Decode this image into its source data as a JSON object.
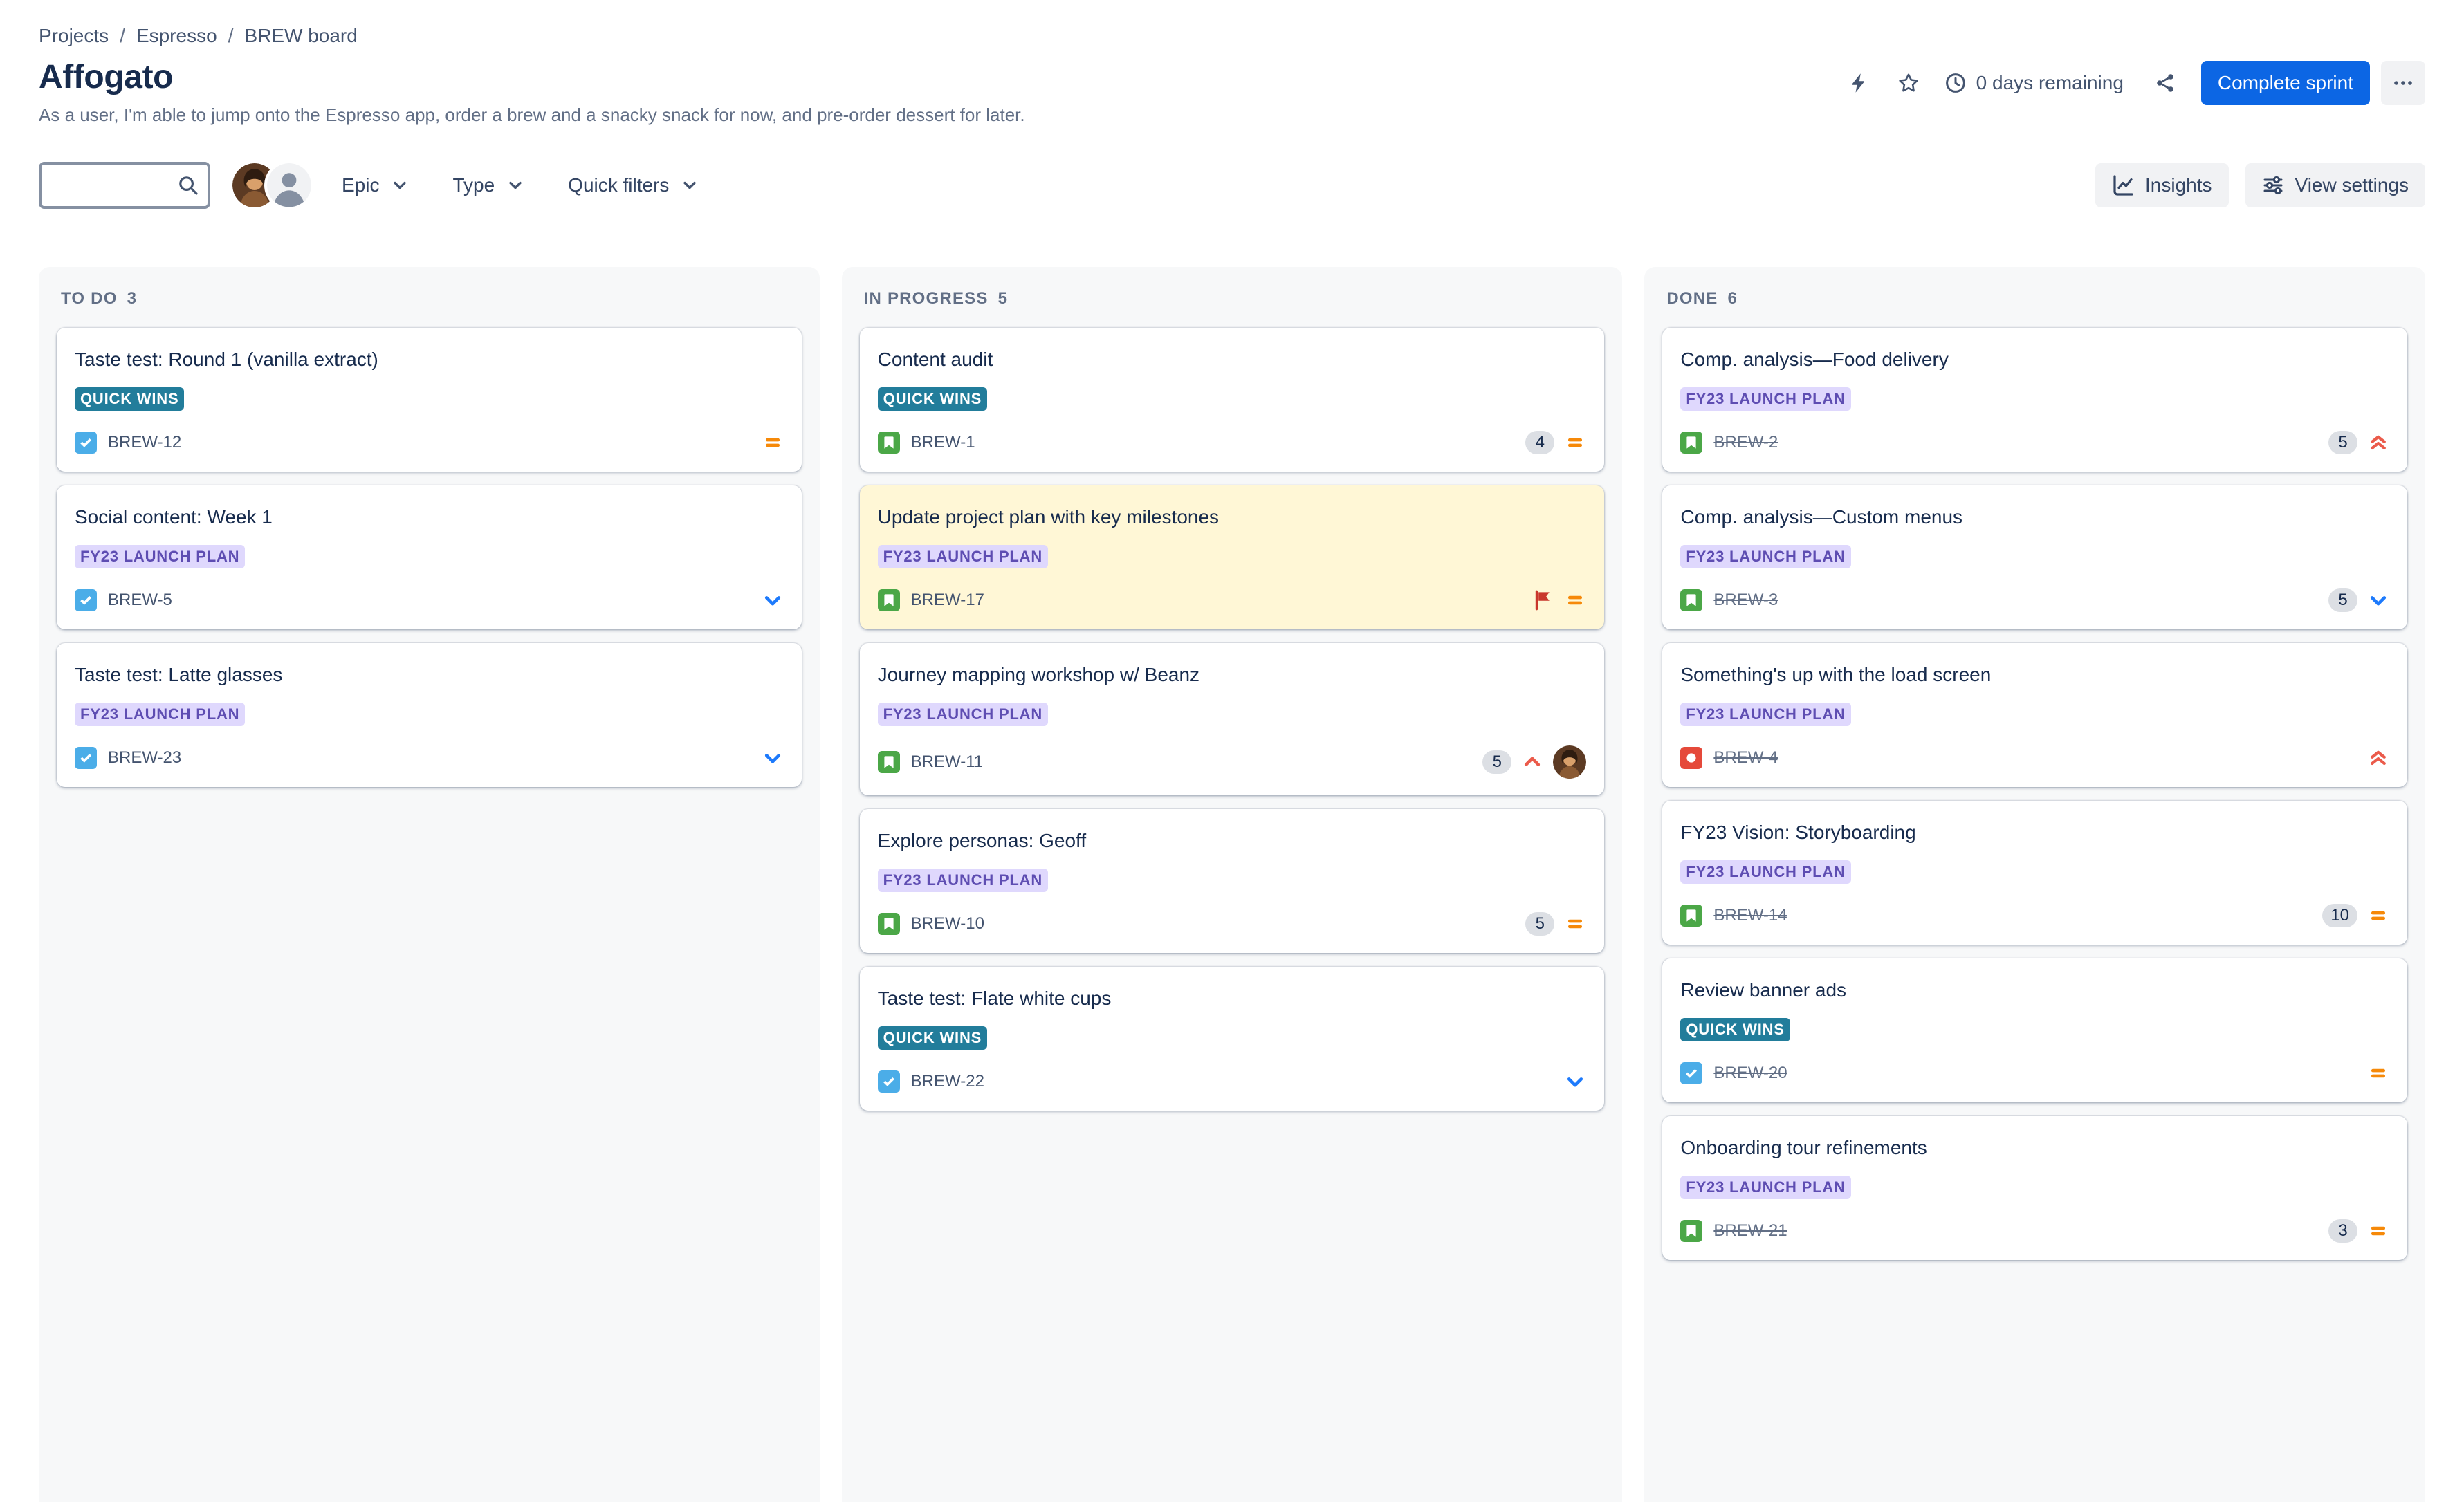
{
  "colors": {
    "primary_blue": "#0C66E4",
    "epic_teal_badge_bg": "#227D9B",
    "epic_purple_badge_bg": "#DFD8FD",
    "epic_purple_badge_text": "#5E4DB2",
    "flagged_card_bg": "#FFF7D6",
    "task_icon_blue": "#4BADE8",
    "story_icon_green": "#4BA747",
    "bug_icon_red": "#E5493A",
    "priority_medium_orange": "#F68909",
    "priority_low_blue": "#1D7AFC",
    "priority_high_red": "#EB5B4B",
    "flag_red": "#C9372C",
    "column_bg": "#F7F8F9"
  },
  "breadcrumb": {
    "items": [
      {
        "label": "Projects"
      },
      {
        "label": "Espresso"
      },
      {
        "label": "BREW board"
      }
    ]
  },
  "header": {
    "title": "Affogato",
    "subtitle": "As a user, I'm able to jump onto the Espresso app, order a brew and a snacky snack for now, and pre-order dessert for later.",
    "days_remaining": "0 days remaining",
    "complete_sprint_label": "Complete sprint",
    "icons": [
      "lightning-icon",
      "star-icon",
      "clock-icon",
      "share-icon",
      "more-icon"
    ]
  },
  "toolbar": {
    "search": {
      "value": "",
      "placeholder": ""
    },
    "avatars": [
      {
        "name": "user-avatar-photo"
      },
      {
        "name": "user-avatar-default"
      }
    ],
    "filters": [
      {
        "label": "Epic"
      },
      {
        "label": "Type"
      },
      {
        "label": "Quick filters"
      }
    ],
    "insights_label": "Insights",
    "view_settings_label": "View settings"
  },
  "board": {
    "columns": [
      {
        "title": "TO DO",
        "count": 3,
        "cards": [
          {
            "title": "Taste test: Round 1 (vanilla extract)",
            "epic": {
              "label": "QUICK WINS",
              "style": "teal"
            },
            "key": "BREW-12",
            "type": "task",
            "priority": "medium",
            "estimate": null,
            "done": false,
            "flagged": false,
            "assignee_avatar": false
          },
          {
            "title": "Social content: Week 1",
            "epic": {
              "label": "FY23 LAUNCH PLAN",
              "style": "purple"
            },
            "key": "BREW-5",
            "type": "task",
            "priority": "low",
            "estimate": null,
            "done": false,
            "flagged": false,
            "assignee_avatar": false
          },
          {
            "title": "Taste test: Latte glasses",
            "epic": {
              "label": "FY23 LAUNCH PLAN",
              "style": "purple"
            },
            "key": "BREW-23",
            "type": "task",
            "priority": "low",
            "estimate": null,
            "done": false,
            "flagged": false,
            "assignee_avatar": false
          }
        ]
      },
      {
        "title": "IN PROGRESS",
        "count": 5,
        "cards": [
          {
            "title": "Content audit",
            "epic": {
              "label": "QUICK WINS",
              "style": "teal"
            },
            "key": "BREW-1",
            "type": "story",
            "priority": "medium",
            "estimate": "4",
            "done": false,
            "flagged": false,
            "assignee_avatar": false
          },
          {
            "title": "Update project plan with key milestones",
            "epic": {
              "label": "FY23 LAUNCH PLAN",
              "style": "purple"
            },
            "key": "BREW-17",
            "type": "story",
            "priority": "medium",
            "estimate": null,
            "done": false,
            "flagged": true,
            "assignee_avatar": false
          },
          {
            "title": "Journey mapping workshop w/ Beanz",
            "epic": {
              "label": "FY23 LAUNCH PLAN",
              "style": "purple"
            },
            "key": "BREW-11",
            "type": "story",
            "priority": "high",
            "estimate": "5",
            "done": false,
            "flagged": false,
            "assignee_avatar": true
          },
          {
            "title": "Explore personas: Geoff",
            "epic": {
              "label": "FY23 LAUNCH PLAN",
              "style": "purple"
            },
            "key": "BREW-10",
            "type": "story",
            "priority": "medium",
            "estimate": "5",
            "done": false,
            "flagged": false,
            "assignee_avatar": false
          },
          {
            "title": "Taste test: Flate white cups",
            "epic": {
              "label": "QUICK WINS",
              "style": "teal"
            },
            "key": "BREW-22",
            "type": "task",
            "priority": "low",
            "estimate": null,
            "done": false,
            "flagged": false,
            "assignee_avatar": false
          }
        ]
      },
      {
        "title": "DONE",
        "count": 6,
        "cards": [
          {
            "title": "Comp. analysis—Food delivery",
            "epic": {
              "label": "FY23 LAUNCH PLAN",
              "style": "purple"
            },
            "key": "BREW-2",
            "type": "story",
            "priority": "highest",
            "estimate": "5",
            "done": true,
            "flagged": false,
            "assignee_avatar": false
          },
          {
            "title": "Comp. analysis—Custom menus",
            "epic": {
              "label": "FY23 LAUNCH PLAN",
              "style": "purple"
            },
            "key": "BREW-3",
            "type": "story",
            "priority": "low",
            "estimate": "5",
            "done": true,
            "flagged": false,
            "assignee_avatar": false
          },
          {
            "title": "Something's up with the load screen",
            "epic": {
              "label": "FY23 LAUNCH PLAN",
              "style": "purple"
            },
            "key": "BREW-4",
            "type": "bug",
            "priority": "highest",
            "estimate": null,
            "done": true,
            "flagged": false,
            "assignee_avatar": false
          },
          {
            "title": "FY23 Vision: Storyboarding",
            "epic": {
              "label": "FY23 LAUNCH PLAN",
              "style": "purple"
            },
            "key": "BREW-14",
            "type": "story",
            "priority": "medium",
            "estimate": "10",
            "done": true,
            "flagged": false,
            "assignee_avatar": false
          },
          {
            "title": "Review banner ads",
            "epic": {
              "label": "QUICK WINS",
              "style": "teal"
            },
            "key": "BREW-20",
            "type": "task",
            "priority": "medium",
            "estimate": null,
            "done": true,
            "flagged": false,
            "assignee_avatar": false
          },
          {
            "title": "Onboarding tour refinements",
            "epic": {
              "label": "FY23 LAUNCH PLAN",
              "style": "purple"
            },
            "key": "BREW-21",
            "type": "story",
            "priority": "medium",
            "estimate": "3",
            "done": true,
            "flagged": false,
            "assignee_avatar": false
          }
        ]
      }
    ]
  }
}
